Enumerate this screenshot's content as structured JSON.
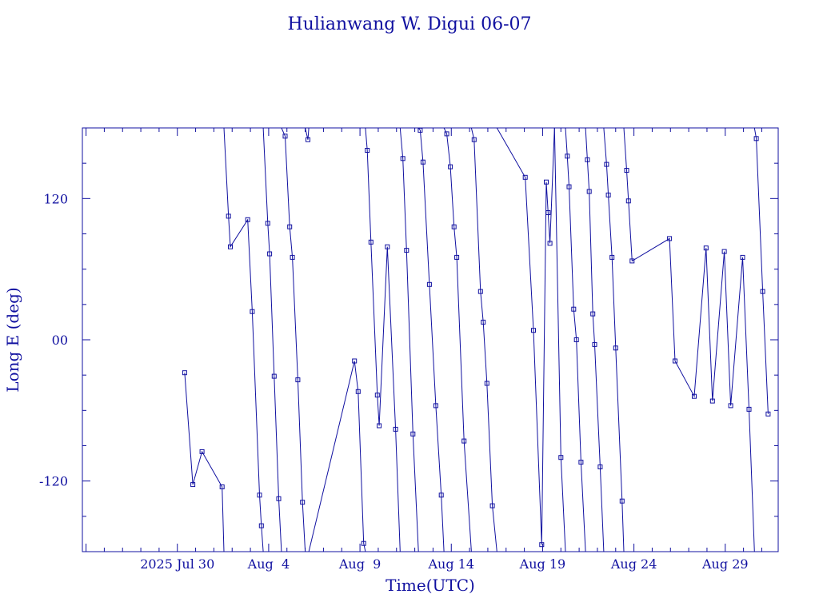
{
  "chart_data": {
    "type": "line",
    "title": "Hulianwang W. Digui 06-07",
    "xlabel": "Time(UTC)",
    "ylabel": "Long E (deg)",
    "xlim": [
      -5.2,
      32.9
    ],
    "ylim": [
      -180,
      180
    ],
    "x_axis_base": "2025-07-30",
    "x_ticks": [
      {
        "value": 0,
        "label": "2025 Jul 30"
      },
      {
        "value": 5,
        "label": "Aug  4"
      },
      {
        "value": 10,
        "label": "Aug  9"
      },
      {
        "value": 15,
        "label": "Aug 14"
      },
      {
        "value": 20,
        "label": "Aug 19"
      },
      {
        "value": 25,
        "label": "Aug 24"
      },
      {
        "value": 30,
        "label": "Aug 29"
      }
    ],
    "y_ticks": [
      {
        "value": -120,
        "label": "-120"
      },
      {
        "value": 0,
        "label": "00"
      },
      {
        "value": 120,
        "label": "120"
      }
    ],
    "series": [
      {
        "name": "",
        "segments": [
          [
            [
              0.4,
              -28
            ],
            [
              0.85,
              -123
            ],
            [
              1.35,
              -95
            ],
            [
              2.45,
              -125
            ],
            [
              2.55,
              -180
            ]
          ],
          [
            [
              2.55,
              180
            ],
            [
              2.8,
              105
            ],
            [
              2.9,
              79
            ],
            [
              3.85,
              102
            ],
            [
              4.1,
              24
            ],
            [
              4.5,
              -132
            ],
            [
              4.6,
              -158
            ],
            [
              4.7,
              -180
            ]
          ],
          [
            [
              4.7,
              180
            ],
            [
              4.95,
              99
            ],
            [
              5.05,
              73
            ],
            [
              5.3,
              -31
            ],
            [
              5.55,
              -135
            ],
            [
              5.7,
              -180
            ]
          ],
          [
            [
              5.7,
              180
            ],
            [
              5.9,
              173
            ],
            [
              6.15,
              96
            ],
            [
              6.3,
              70
            ],
            [
              6.6,
              -34
            ],
            [
              6.85,
              -138
            ],
            [
              7.0,
              -180
            ]
          ],
          [
            [
              7.0,
              180
            ],
            [
              7.15,
              170
            ],
            [
              7.2,
              180
            ]
          ],
          [
            [
              7.2,
              -180
            ],
            [
              9.7,
              -18
            ],
            [
              9.9,
              -44
            ],
            [
              10.2,
              -173
            ],
            [
              10.3,
              -180
            ]
          ],
          [
            [
              10.3,
              180
            ],
            [
              10.4,
              161
            ],
            [
              10.6,
              83
            ],
            [
              10.95,
              -47
            ],
            [
              11.05,
              -73
            ],
            [
              11.5,
              79
            ],
            [
              11.95,
              -76
            ],
            [
              12.2,
              -180
            ]
          ],
          [
            [
              12.2,
              180
            ],
            [
              12.35,
              154
            ],
            [
              12.55,
              76
            ],
            [
              12.9,
              -80
            ],
            [
              13.2,
              -180
            ]
          ],
          [
            [
              13.2,
              180
            ],
            [
              13.3,
              178
            ],
            [
              13.45,
              151
            ],
            [
              13.8,
              47
            ],
            [
              14.15,
              -56
            ],
            [
              14.45,
              -132
            ],
            [
              14.6,
              -180
            ]
          ],
          [
            [
              14.6,
              180
            ],
            [
              14.75,
              175
            ],
            [
              14.95,
              147
            ],
            [
              15.15,
              96
            ],
            [
              15.3,
              70
            ],
            [
              15.7,
              -86
            ],
            [
              16.1,
              -180
            ]
          ],
          [
            [
              16.1,
              180
            ],
            [
              16.25,
              170
            ],
            [
              16.6,
              41
            ],
            [
              16.75,
              15
            ],
            [
              16.95,
              -37
            ],
            [
              17.25,
              -141
            ],
            [
              17.5,
              -180
            ]
          ],
          [
            [
              17.5,
              180
            ],
            [
              19.05,
              138
            ],
            [
              19.5,
              8
            ],
            [
              19.95,
              -174
            ],
            [
              20.2,
              134
            ],
            [
              20.3,
              108
            ],
            [
              20.4,
              82
            ],
            [
              20.65,
              180
            ]
          ],
          [
            [
              20.65,
              180
            ],
            [
              21.0,
              -100
            ],
            [
              21.25,
              -180
            ]
          ],
          [
            [
              21.25,
              180
            ],
            [
              21.35,
              156
            ],
            [
              21.45,
              130
            ],
            [
              21.7,
              26
            ],
            [
              21.85,
              0
            ],
            [
              22.1,
              -104
            ],
            [
              22.35,
              -180
            ]
          ],
          [
            [
              22.35,
              180
            ],
            [
              22.45,
              153
            ],
            [
              22.55,
              126
            ],
            [
              22.75,
              22
            ],
            [
              22.85,
              -4
            ],
            [
              23.15,
              -108
            ],
            [
              23.35,
              -180
            ]
          ],
          [
            [
              23.35,
              180
            ],
            [
              23.5,
              149
            ],
            [
              23.6,
              123
            ],
            [
              23.8,
              70
            ],
            [
              24.0,
              -7
            ],
            [
              24.35,
              -137
            ],
            [
              24.45,
              -180
            ]
          ],
          [
            [
              24.45,
              180
            ],
            [
              24.6,
              144
            ],
            [
              24.7,
              118
            ],
            [
              24.9,
              67
            ],
            [
              26.95,
              86
            ],
            [
              27.25,
              -18
            ],
            [
              28.3,
              -48
            ],
            [
              28.95,
              78
            ],
            [
              29.3,
              -52
            ],
            [
              29.95,
              75
            ],
            [
              30.3,
              -56
            ],
            [
              30.95,
              70
            ],
            [
              31.3,
              -59
            ],
            [
              31.6,
              -180
            ]
          ],
          [
            [
              31.6,
              180
            ],
            [
              31.7,
              171
            ],
            [
              32.05,
              41
            ],
            [
              32.35,
              -63
            ]
          ]
        ]
      }
    ]
  }
}
